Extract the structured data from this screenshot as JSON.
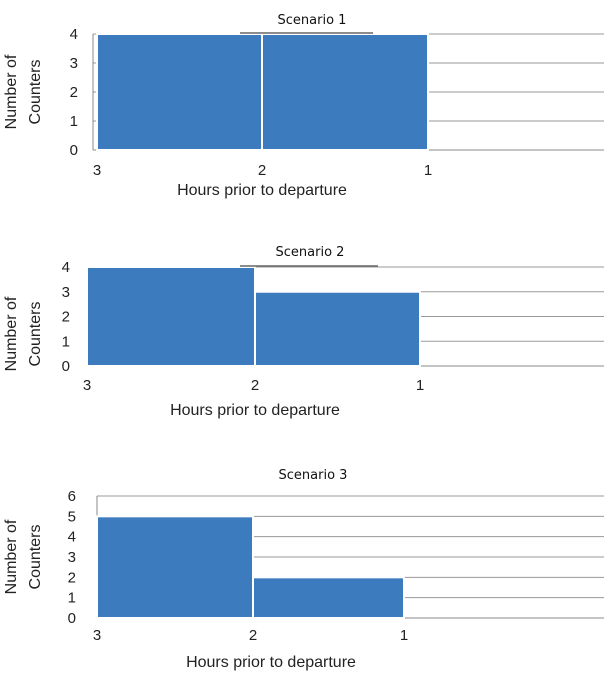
{
  "chart_data": [
    {
      "type": "bar",
      "title": "Scenario 1",
      "xlabel": "Hours prior to departure",
      "ylabel": "Number of Counters",
      "ylabel_lines": [
        "Number of",
        "Counters"
      ],
      "x_ticks": [
        "3",
        "2",
        "1"
      ],
      "categories": [
        "3-2",
        "2-1"
      ],
      "values": [
        4,
        4
      ],
      "ylim": [
        0,
        4
      ],
      "y_ticks": [
        0,
        1,
        2,
        3,
        4
      ],
      "grid": true,
      "bar_color": "#3d7bbf"
    },
    {
      "type": "bar",
      "title": "Scenario 2",
      "xlabel": "Hours prior to departure",
      "ylabel": "Number of Counters",
      "ylabel_lines": [
        "Number of",
        "Counters"
      ],
      "x_ticks": [
        "3",
        "2",
        "1"
      ],
      "categories": [
        "3-2",
        "2-1"
      ],
      "values": [
        4,
        3
      ],
      "ylim": [
        0,
        4
      ],
      "y_ticks": [
        0,
        1,
        2,
        3,
        4
      ],
      "grid": true,
      "bar_color": "#3d7bbf"
    },
    {
      "type": "bar",
      "title": "Scenario 3",
      "xlabel": "Hours prior to departure",
      "ylabel": "Number of Counters",
      "ylabel_lines": [
        "Number of",
        "Counters"
      ],
      "x_ticks": [
        "3",
        "2",
        "1"
      ],
      "categories": [
        "3-2",
        "2-1"
      ],
      "values": [
        5,
        2
      ],
      "ylim": [
        0,
        6
      ],
      "y_ticks": [
        0,
        1,
        2,
        3,
        4,
        5,
        6
      ],
      "grid": true,
      "bar_color": "#3d7bbf"
    }
  ]
}
